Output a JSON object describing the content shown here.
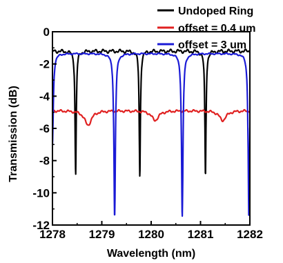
{
  "chart_data": {
    "type": "line",
    "title": "",
    "xlabel": "Wavelength (nm)",
    "ylabel": "Transmission (dB)",
    "xlim": [
      1278,
      1282
    ],
    "ylim": [
      -12,
      0
    ],
    "x_ticks": [
      1278,
      1279,
      1280,
      1281,
      1282
    ],
    "y_ticks": [
      0,
      -2,
      -4,
      -6,
      -8,
      -10,
      -12
    ],
    "grid": false,
    "legend_position": "top-right",
    "series": [
      {
        "name": "Undoped Ring",
        "color": "#000000",
        "baseline": -1.2,
        "noise": 0.12,
        "dips": [
          {
            "center": 1278.47,
            "depth": -8.9,
            "width": 0.035
          },
          {
            "center": 1279.77,
            "depth": -9.0,
            "width": 0.035
          },
          {
            "center": 1281.1,
            "depth": -9.0,
            "width": 0.035
          }
        ]
      },
      {
        "name": "offset = 0.4 um",
        "color": "#e02020",
        "baseline": -4.9,
        "noise": 0.08,
        "dips": [
          {
            "center": 1278.72,
            "depth": -5.8,
            "width": 0.12
          },
          {
            "center": 1280.08,
            "depth": -5.5,
            "width": 0.12
          },
          {
            "center": 1281.45,
            "depth": -5.5,
            "width": 0.12
          }
        ]
      },
      {
        "name": "offset = 3 um",
        "color": "#1a1ad6",
        "baseline": -1.35,
        "noise": 0.05,
        "dips": [
          {
            "center": 1278.0,
            "depth": -7.0,
            "width": 0.05
          },
          {
            "center": 1279.26,
            "depth": -11.5,
            "width": 0.045
          },
          {
            "center": 1280.63,
            "depth": -11.5,
            "width": 0.045
          },
          {
            "center": 1281.98,
            "depth": -11.5,
            "width": 0.045
          }
        ]
      }
    ]
  }
}
